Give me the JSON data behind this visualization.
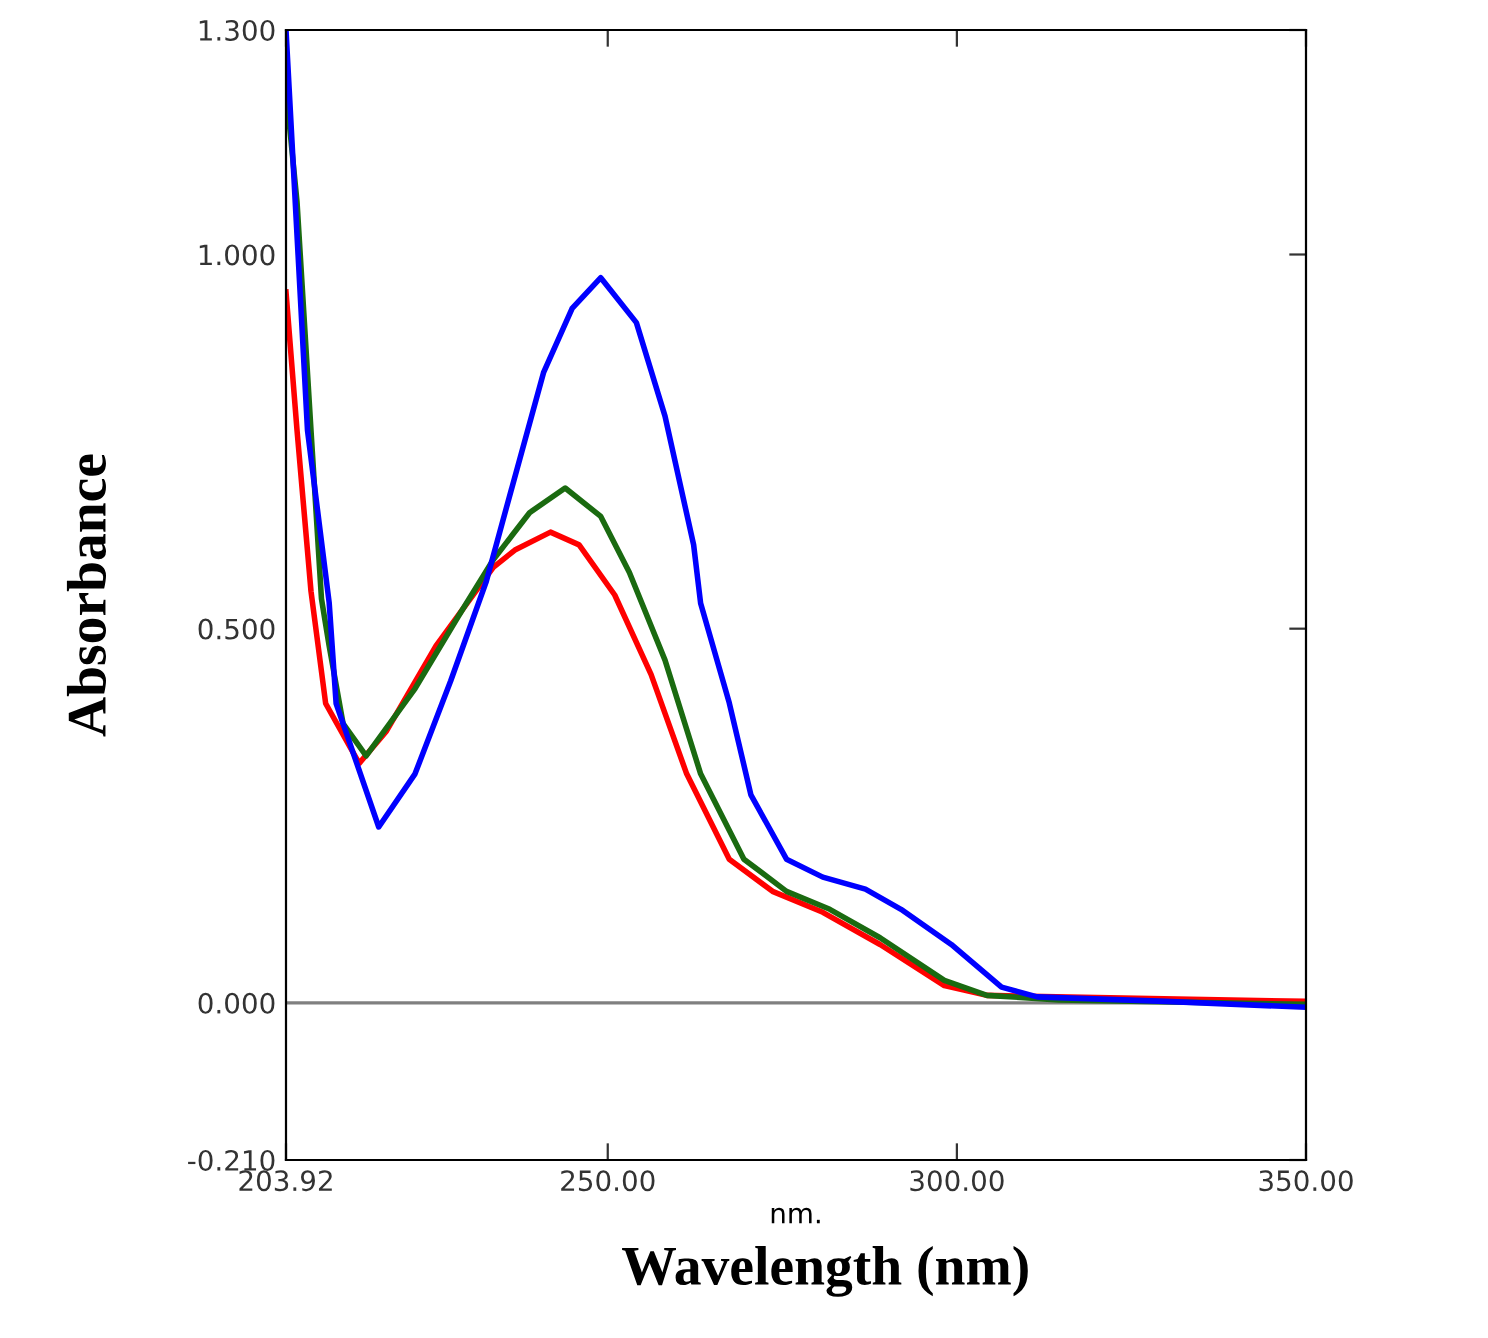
{
  "chart_data": {
    "type": "line",
    "xlabel": "nm.",
    "ylabel": "Absorbance",
    "annotations": [
      "Wavelength (nm)"
    ],
    "xlim": [
      203.92,
      350
    ],
    "ylim": [
      -0.21,
      1.3
    ],
    "xticks": [
      {
        "value": 203.92,
        "label": "203.92"
      },
      {
        "value": 250,
        "label": "250.00"
      },
      {
        "value": 300,
        "label": "300.00"
      },
      {
        "value": 350,
        "label": "350.00"
      }
    ],
    "yticks": [
      {
        "value": -0.21,
        "label": "-0.210"
      },
      {
        "value": 0,
        "label": "0.000"
      },
      {
        "value": 0.5,
        "label": "0.500"
      },
      {
        "value": 1.0,
        "label": "1.000"
      },
      {
        "value": 1.3,
        "label": "1.300"
      }
    ],
    "grid": false,
    "legend": false,
    "line_style": "solid",
    "marker": "none",
    "ref_lines": [
      {
        "axis": "y",
        "value": 0,
        "color": "#808080"
      }
    ],
    "series": [
      {
        "color": "#ff0000",
        "x": [
          203.92,
          205.5,
          207.5,
          209.6,
          214.4,
          218.3,
          225.4,
          233.6,
          236.7,
          241.8,
          245.9,
          251.0,
          256.2,
          261.3,
          267.4,
          273.6,
          280.8,
          289.0,
          298.2,
          304.3,
          350
        ],
        "values": [
          0.95,
          0.765,
          0.55,
          0.4,
          0.32,
          0.363,
          0.477,
          0.582,
          0.605,
          0.629,
          0.612,
          0.545,
          0.439,
          0.306,
          0.192,
          0.149,
          0.121,
          0.078,
          0.023,
          0.01,
          0.002
        ]
      },
      {
        "color": "#1a6a10",
        "x": [
          203.92,
          205.5,
          207.5,
          209.0,
          210.1,
          212.1,
          215.4,
          222.4,
          228.5,
          233.6,
          238.8,
          243.9,
          249.0,
          253.1,
          258.2,
          263.3,
          269.5,
          275.6,
          281.8,
          289.0,
          298.2,
          304.3,
          314.6,
          350
        ],
        "values": [
          1.22,
          1.07,
          0.765,
          0.54,
          0.477,
          0.373,
          0.33,
          0.42,
          0.515,
          0.592,
          0.655,
          0.688,
          0.65,
          0.575,
          0.458,
          0.306,
          0.192,
          0.149,
          0.125,
          0.087,
          0.03,
          0.01,
          0.004,
          -0.002
        ]
      },
      {
        "color": "#0000ff",
        "x": [
          203.92,
          207.0,
          210.1,
          211.1,
          217.2,
          222.4,
          227.5,
          232.6,
          235.7,
          240.8,
          244.9,
          249.0,
          254.1,
          258.2,
          262.3,
          263.3,
          267.4,
          270.5,
          275.6,
          280.8,
          286.9,
          292.0,
          299.2,
          306.4,
          311.5,
          329.9,
          350
        ],
        "values": [
          1.3,
          0.765,
          0.535,
          0.4,
          0.235,
          0.306,
          0.43,
          0.563,
          0.669,
          0.842,
          0.928,
          0.969,
          0.909,
          0.784,
          0.612,
          0.534,
          0.401,
          0.278,
          0.192,
          0.168,
          0.152,
          0.125,
          0.078,
          0.021,
          0.008,
          0.002,
          -0.006
        ]
      }
    ]
  }
}
